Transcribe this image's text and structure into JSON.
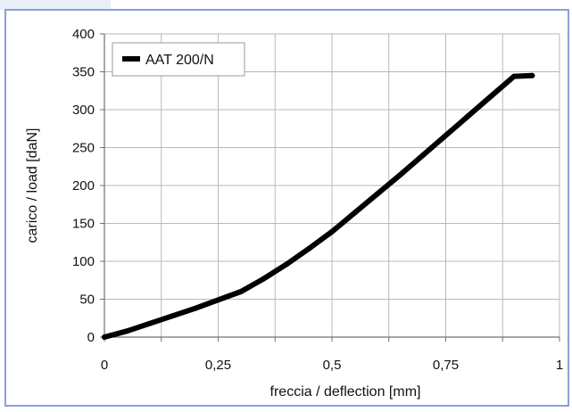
{
  "colors": {
    "frame": "#8aa0d8",
    "frame_tab": "#e9eef8",
    "grid": "#b9b9b9",
    "axis": "#707070",
    "line": "#000000",
    "text": "#111111"
  },
  "chart_data": {
    "type": "line",
    "xlabel": "freccia / deflection [mm]",
    "ylabel": "carico / load [daN]",
    "xlim": [
      0,
      1
    ],
    "ylim": [
      0,
      400
    ],
    "x_ticks": [
      0,
      0.125,
      0.25,
      0.375,
      0.5,
      0.625,
      0.75,
      0.875,
      1
    ],
    "x_tick_labels": [
      "0",
      "",
      "0,25",
      "",
      "0,5",
      "",
      "0,75",
      "",
      "1"
    ],
    "y_ticks": [
      0,
      50,
      100,
      150,
      200,
      250,
      300,
      350,
      400
    ],
    "y_tick_labels": [
      "0",
      "50",
      "100",
      "150",
      "200",
      "250",
      "300",
      "350",
      "400"
    ],
    "grid": true,
    "legend_position": "top-left",
    "series": [
      {
        "name": "AAT 200/N",
        "x": [
          0,
          0.05,
          0.1,
          0.15,
          0.2,
          0.25,
          0.3,
          0.35,
          0.4,
          0.45,
          0.5,
          0.55,
          0.6,
          0.65,
          0.7,
          0.75,
          0.8,
          0.85,
          0.9,
          0.94
        ],
        "y": [
          0,
          8,
          18,
          28,
          38,
          49,
          60,
          77,
          96,
          117,
          139,
          164,
          189,
          214,
          240,
          266,
          292,
          318,
          344,
          345
        ]
      }
    ]
  }
}
